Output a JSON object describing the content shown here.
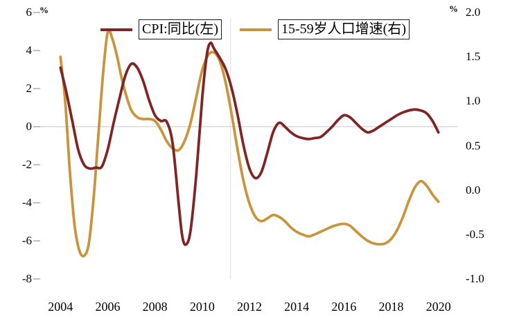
{
  "chart_data": {
    "type": "line",
    "title": "",
    "background": "#FFFFFF",
    "zero_line_color": "#D9D9D9",
    "vline": {
      "year": 2011.2,
      "color": "#DDDDDD"
    },
    "legend": {
      "position": "top-center",
      "items": [
        {
          "label": "CPI:同比(左)",
          "color": "#7F2526"
        },
        {
          "label": "15-59岁人口增速(右)",
          "color": "#C8953C"
        }
      ]
    },
    "x_axis": {
      "range": [
        2003.2,
        2020.8
      ],
      "tick_values": [
        2004,
        2006,
        2008,
        2010,
        2012,
        2014,
        2016,
        2018,
        2020
      ],
      "tick_labels": [
        "2004",
        "2006",
        "2008",
        "2010",
        "2012",
        "2014",
        "2016",
        "2018",
        "2020"
      ]
    },
    "left_axis": {
      "unit": "%",
      "range": [
        -8,
        6
      ],
      "tick_values": [
        6,
        4,
        2,
        0,
        -2,
        -4,
        -6,
        -8
      ],
      "tick_labels": [
        "6",
        "4",
        "2",
        "0",
        "-2",
        "-4",
        "-6",
        "-8"
      ]
    },
    "right_axis": {
      "unit": "%",
      "range": [
        -1,
        2
      ],
      "tick_values": [
        2,
        1.5,
        1,
        0.5,
        0,
        -0.5,
        -1
      ],
      "tick_labels": [
        "2.0",
        "1.5",
        "1.0",
        "0.5",
        "0.0",
        "-0.5",
        "-1.0"
      ]
    },
    "series": [
      {
        "name": "CPI:同比(左)",
        "axis": "left",
        "color": "#7F2526",
        "x": [
          2004.0,
          2004.25,
          2004.5,
          2004.75,
          2005.0,
          2005.25,
          2005.5,
          2005.75,
          2006.0,
          2006.25,
          2006.5,
          2006.75,
          2007.0,
          2007.25,
          2007.5,
          2007.75,
          2008.0,
          2008.25,
          2008.5,
          2008.75,
          2009.0,
          2009.15,
          2009.3,
          2009.5,
          2009.75,
          2010.0,
          2010.2,
          2010.35,
          2010.5,
          2010.75,
          2011.0,
          2011.25,
          2011.5,
          2011.75,
          2012.0,
          2012.25,
          2012.5,
          2012.75,
          2013.0,
          2013.25,
          2013.5,
          2013.75,
          2014.0,
          2014.25,
          2014.5,
          2014.75,
          2015.0,
          2015.25,
          2015.5,
          2015.75,
          2016.0,
          2016.25,
          2016.5,
          2016.75,
          2017.0,
          2017.25,
          2017.5,
          2017.75,
          2018.0,
          2018.25,
          2018.5,
          2018.75,
          2019.0,
          2019.25,
          2019.5,
          2019.75,
          2020.0
        ],
        "values": [
          3.1,
          1.8,
          0.3,
          -1.2,
          -2.0,
          -2.2,
          -2.15,
          -2.1,
          -1.2,
          0.2,
          1.5,
          2.7,
          3.3,
          3.1,
          2.4,
          1.4,
          0.6,
          0.3,
          0.25,
          -0.9,
          -4.0,
          -5.7,
          -6.2,
          -5.5,
          -2.5,
          1.5,
          3.8,
          4.4,
          4.1,
          3.6,
          3.0,
          2.0,
          0.6,
          -1.0,
          -2.2,
          -2.7,
          -2.4,
          -1.4,
          -0.3,
          0.2,
          0.0,
          -0.3,
          -0.5,
          -0.6,
          -0.65,
          -0.6,
          -0.55,
          -0.3,
          0.0,
          0.35,
          0.6,
          0.5,
          0.2,
          -0.1,
          -0.3,
          -0.2,
          0.0,
          0.2,
          0.4,
          0.6,
          0.75,
          0.85,
          0.9,
          0.85,
          0.7,
          0.3,
          -0.3
        ]
      },
      {
        "name": "15-59岁人口增速(右)",
        "axis": "right",
        "color": "#C8953C",
        "x": [
          2004.0,
          2004.2,
          2004.4,
          2004.6,
          2004.8,
          2005.0,
          2005.2,
          2005.4,
          2005.6,
          2005.8,
          2006.0,
          2006.2,
          2006.4,
          2006.6,
          2006.8,
          2007.0,
          2007.25,
          2007.5,
          2007.75,
          2008.0,
          2008.25,
          2008.5,
          2008.75,
          2009.0,
          2009.25,
          2009.5,
          2009.75,
          2010.0,
          2010.25,
          2010.5,
          2010.75,
          2011.0,
          2011.25,
          2011.5,
          2011.75,
          2012.0,
          2012.25,
          2012.5,
          2012.75,
          2013.0,
          2013.25,
          2013.5,
          2013.75,
          2014.0,
          2014.25,
          2014.5,
          2014.75,
          2015.0,
          2015.25,
          2015.5,
          2015.75,
          2016.0,
          2016.25,
          2016.5,
          2016.75,
          2017.0,
          2017.25,
          2017.5,
          2017.75,
          2018.0,
          2018.25,
          2018.5,
          2018.75,
          2019.0,
          2019.25,
          2019.5,
          2019.75,
          2020.0
        ],
        "values": [
          1.5,
          1.0,
          0.2,
          -0.4,
          -0.68,
          -0.74,
          -0.6,
          -0.1,
          0.6,
          1.3,
          1.78,
          1.7,
          1.5,
          1.25,
          1.05,
          0.9,
          0.82,
          0.8,
          0.8,
          0.78,
          0.68,
          0.55,
          0.47,
          0.45,
          0.55,
          0.75,
          1.05,
          1.35,
          1.52,
          1.55,
          1.45,
          1.2,
          0.85,
          0.45,
          0.1,
          -0.15,
          -0.3,
          -0.35,
          -0.32,
          -0.28,
          -0.3,
          -0.35,
          -0.42,
          -0.47,
          -0.5,
          -0.52,
          -0.5,
          -0.47,
          -0.44,
          -0.41,
          -0.39,
          -0.38,
          -0.4,
          -0.46,
          -0.52,
          -0.57,
          -0.6,
          -0.61,
          -0.6,
          -0.55,
          -0.45,
          -0.3,
          -0.12,
          0.03,
          0.1,
          0.05,
          -0.05,
          -0.13
        ]
      }
    ]
  }
}
